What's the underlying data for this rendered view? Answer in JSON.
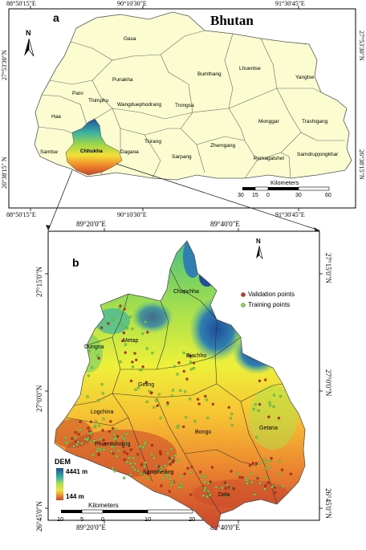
{
  "panel_a": {
    "letter": "a",
    "title": "Bhutan",
    "north": "N",
    "top_ticks": [
      "88°50'15\"E",
      "90°10'30\"E",
      "91°30'45\"E"
    ],
    "bottom_ticks": [
      "88°50'15\"E",
      "90°10'30\"E",
      "91°30'45\"E"
    ],
    "left_ticks": [
      "27°53'30\"N",
      "26°38'15\" N"
    ],
    "right_ticks": [
      "27°53'30\"N",
      "26°38'15\"N"
    ],
    "districts": {
      "gasa": "Gasa",
      "paro": "Paro",
      "punakha": "Punakha",
      "thimphu": "Thimphu",
      "haa": "Haa",
      "wangdue": "Wangduephodrang",
      "bumthang": "Bumthang",
      "lhuentse": "Lhuentse",
      "yangtse": "Yangtse",
      "trongsa": "Trongsa",
      "tsirang": "Tsirang",
      "dagana": "Dagana",
      "samtse": "Samtse",
      "chhukha": "Chhukha",
      "sarpang": "Sarpang",
      "zhemgang": "Zhemgang",
      "monggar": "Monggar",
      "trashigang": "Trashigang",
      "pemagatshel": "Pemagatshel",
      "samdrup": "Samdrupjongkhar"
    },
    "scale": {
      "title": "Kilometers",
      "labels": [
        "30",
        "15",
        "0",
        "30",
        "60"
      ]
    }
  },
  "panel_b": {
    "letter": "b",
    "north": "N",
    "top_ticks": [
      "89°20'0\"E",
      "89°40'0\"E"
    ],
    "bottom_ticks": [
      "89°20'0\"E",
      "89°40'0\"E"
    ],
    "left_ticks": [
      "27°15'0\"N",
      "27°0'0\"N",
      "26°45'0\"N"
    ],
    "right_ticks": [
      "27°15'0\"N",
      "27°0'0\"N",
      "26°45'0\"N"
    ],
    "gewogs": {
      "chapchha": "Chapchha",
      "metap": "Metap",
      "dungna": "Dungna",
      "bjachho": "Bjachho",
      "geling": "Geling",
      "logchina": "Logchina",
      "bongo": "Bongo",
      "getana": "Getana",
      "phuentsholing": "Phuentsholing",
      "samphelling": "Samphelling",
      "dala": "Dala"
    },
    "legend": {
      "validation": "Validation points",
      "training": "Training points"
    },
    "dem": {
      "title": "DEM",
      "high": "4441 m",
      "low": "144 m"
    },
    "scale": {
      "title": "Kilometers",
      "labels": [
        "10",
        "5",
        "0",
        "10",
        "20"
      ]
    }
  },
  "colors": {
    "district_fill": "#fbfdd0",
    "district_border": "#555555",
    "validation_point": "#c0392b",
    "training_point": "#7ed957",
    "dem_high": "#1f4e9c",
    "dem_low": "#c8462a"
  }
}
